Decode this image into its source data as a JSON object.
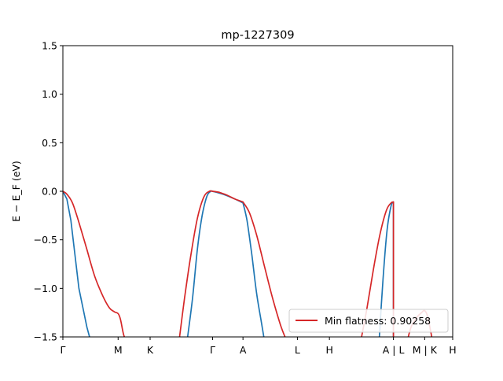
{
  "chart_data": {
    "type": "line",
    "title": "mp-1227309",
    "ylabel": "E − E_F (eV)",
    "xlabel": "",
    "ylim": [
      -1.5,
      1.5
    ],
    "xlim": [
      0,
      4.87
    ],
    "yticks": [
      -1.5,
      -1.0,
      -0.5,
      0.0,
      0.5,
      1.0,
      1.5
    ],
    "ytick_labels": [
      "−1.5",
      "−1.0",
      "−0.5",
      "0.0",
      "0.5",
      "1.0",
      "1.5"
    ],
    "xticks": [
      {
        "x": 0.0,
        "label": "Γ"
      },
      {
        "x": 0.69,
        "label": "M"
      },
      {
        "x": 1.09,
        "label": "K"
      },
      {
        "x": 1.87,
        "label": "Γ"
      },
      {
        "x": 2.25,
        "label": "A"
      },
      {
        "x": 2.93,
        "label": "L"
      },
      {
        "x": 3.33,
        "label": "H"
      },
      {
        "x": 4.13,
        "label": "A | L"
      },
      {
        "x": 4.52,
        "label": "M | K"
      },
      {
        "x": 4.87,
        "label": "H"
      }
    ],
    "grid": false,
    "legend": {
      "position": "lower-right",
      "entries": [
        "Min flatness: 0.90258"
      ]
    },
    "series": [
      {
        "color": "#1f77b4",
        "segments": [
          {
            "x": [
              0.0,
              0.05,
              0.1,
              0.15,
              0.2,
              0.25,
              0.3,
              0.35
            ],
            "y": [
              0.0,
              -0.08,
              -0.3,
              -0.65,
              -1.0,
              -1.2,
              -1.4,
              -1.55
            ]
          },
          {
            "x": [
              1.55,
              1.62,
              1.68,
              1.74,
              1.8,
              1.85,
              1.87
            ],
            "y": [
              -1.55,
              -1.1,
              -0.6,
              -0.25,
              -0.05,
              0.0,
              0.0
            ],
            "smooth": true
          },
          {
            "x": [
              1.87,
              2.0,
              2.15,
              2.25
            ],
            "y": [
              0.0,
              -0.03,
              -0.08,
              -0.12
            ],
            "smooth": true
          },
          {
            "x": [
              2.25,
              2.3,
              2.36,
              2.42,
              2.48,
              2.52
            ],
            "y": [
              -0.12,
              -0.3,
              -0.65,
              -1.05,
              -1.35,
              -1.55
            ],
            "smooth": true
          },
          {
            "x": [
              3.95,
              4.0,
              4.05,
              4.1,
              4.13
            ],
            "y": [
              -1.55,
              -0.9,
              -0.4,
              -0.15,
              -0.11
            ],
            "smooth": true
          },
          {
            "x": [
              4.13,
              4.13
            ],
            "y": [
              -0.11,
              -1.55
            ]
          }
        ]
      },
      {
        "name": "Min flatness: 0.90258",
        "color": "#d62728",
        "segments": [
          {
            "x": [
              0.0,
              0.05,
              0.12,
              0.2,
              0.3,
              0.4,
              0.5,
              0.58,
              0.64,
              0.69,
              0.72,
              0.76,
              0.8
            ],
            "y": [
              0.0,
              -0.03,
              -0.12,
              -0.32,
              -0.6,
              -0.88,
              -1.08,
              -1.2,
              -1.24,
              -1.26,
              -1.32,
              -1.48,
              -1.55
            ],
            "smooth": true
          },
          {
            "x": [
              1.45,
              1.52,
              1.6,
              1.68,
              1.76,
              1.83,
              1.87,
              1.95
            ],
            "y": [
              -1.55,
              -1.1,
              -0.65,
              -0.28,
              -0.06,
              0.0,
              0.0,
              -0.01
            ],
            "smooth": true
          },
          {
            "x": [
              1.95,
              2.05,
              2.15,
              2.25
            ],
            "y": [
              -0.01,
              -0.04,
              -0.08,
              -0.11
            ],
            "smooth": true
          },
          {
            "x": [
              2.25,
              2.33,
              2.42,
              2.52,
              2.62,
              2.72,
              2.8
            ],
            "y": [
              -0.11,
              -0.22,
              -0.45,
              -0.78,
              -1.1,
              -1.38,
              -1.55
            ],
            "smooth": true
          },
          {
            "x": [
              3.72,
              3.8,
              3.88,
              3.96,
              4.04,
              4.1,
              4.13
            ],
            "y": [
              -1.55,
              -1.2,
              -0.8,
              -0.45,
              -0.2,
              -0.12,
              -0.11
            ],
            "smooth": true
          },
          {
            "x": [
              4.13,
              4.13
            ],
            "y": [
              -0.11,
              -1.55
            ]
          },
          {
            "x": [
              4.3,
              4.35,
              4.42,
              4.48,
              4.52,
              4.56,
              4.62
            ],
            "y": [
              -1.55,
              -1.4,
              -1.3,
              -1.25,
              -1.23,
              -1.3,
              -1.55
            ],
            "smooth": true
          }
        ]
      }
    ]
  }
}
